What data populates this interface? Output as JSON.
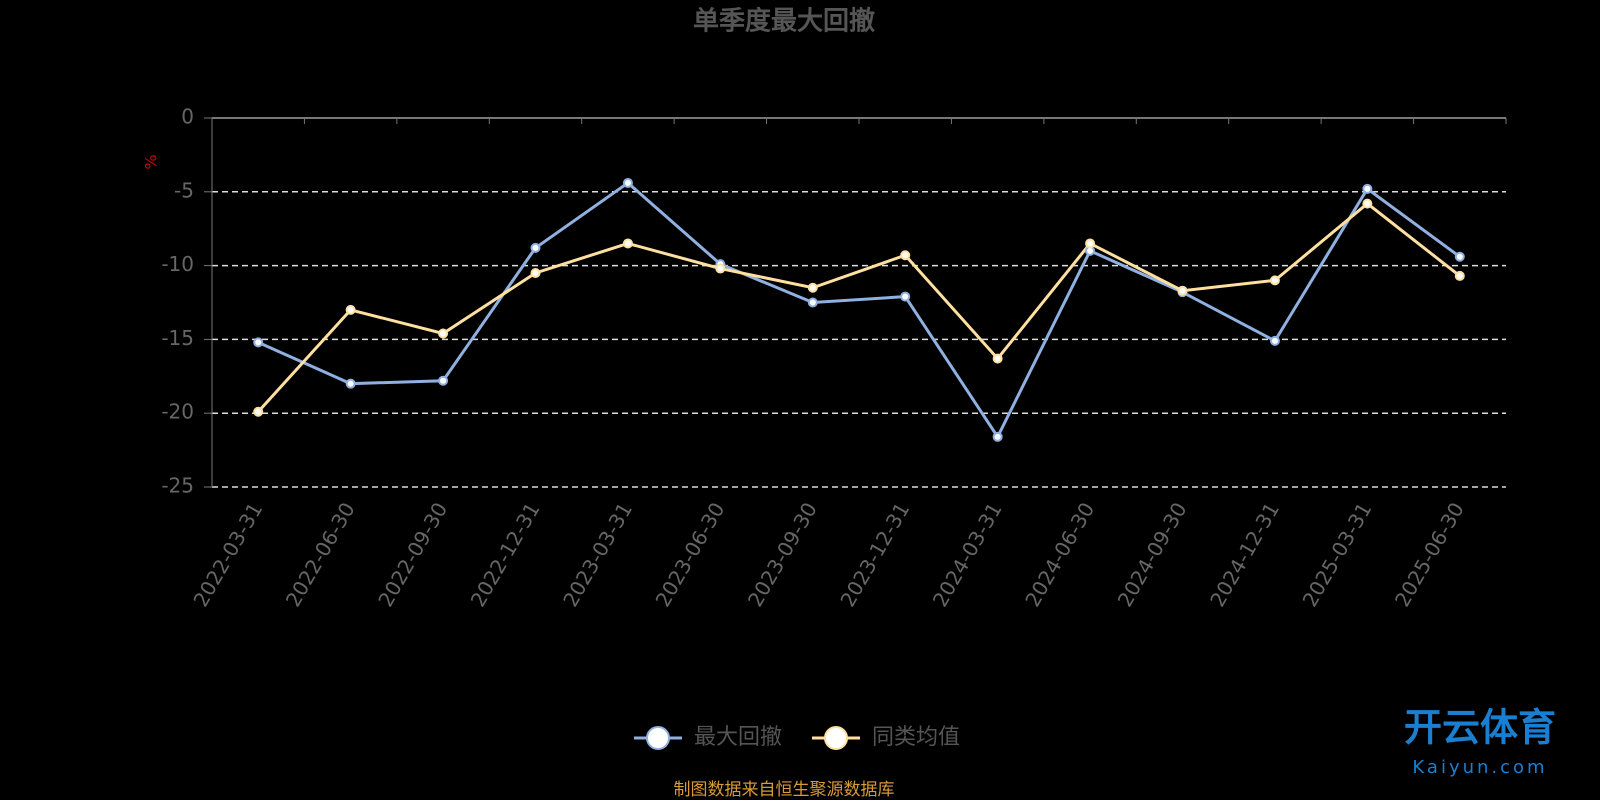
{
  "chart_data": {
    "type": "line",
    "title": "单季度最大回撤",
    "y_label": "%",
    "categories": [
      "2022-03-31",
      "2022-06-30",
      "2022-09-30",
      "2022-12-31",
      "2023-03-31",
      "2023-06-30",
      "2023-09-30",
      "2023-12-31",
      "2024-03-31",
      "2024-06-30",
      "2024-09-30",
      "2024-12-31",
      "2025-03-31",
      "2025-06-30"
    ],
    "series": [
      {
        "name": "最大回撤",
        "color": "#8fb0e0",
        "values": [
          -15.2,
          -18.0,
          -17.8,
          -8.8,
          -4.4,
          -9.9,
          -12.5,
          -12.1,
          -21.6,
          -9.0,
          -11.8,
          -15.1,
          -4.8,
          -9.4
        ]
      },
      {
        "name": "同类均值",
        "color": "#ffe0a0",
        "values": [
          -19.9,
          -13.0,
          -14.6,
          -10.5,
          -8.5,
          -10.2,
          -11.5,
          -9.3,
          -16.3,
          -8.5,
          -11.7,
          -11.0,
          -5.8,
          -10.7
        ]
      }
    ],
    "ylim": [
      -25,
      0
    ],
    "yticks": [
      0,
      -5,
      -10,
      -15,
      -20,
      -25
    ],
    "grid": true,
    "source": "制图数据来自恒生聚源数据库",
    "watermark": {
      "brand": "开云体育",
      "url": "Kaiyun.com"
    }
  }
}
